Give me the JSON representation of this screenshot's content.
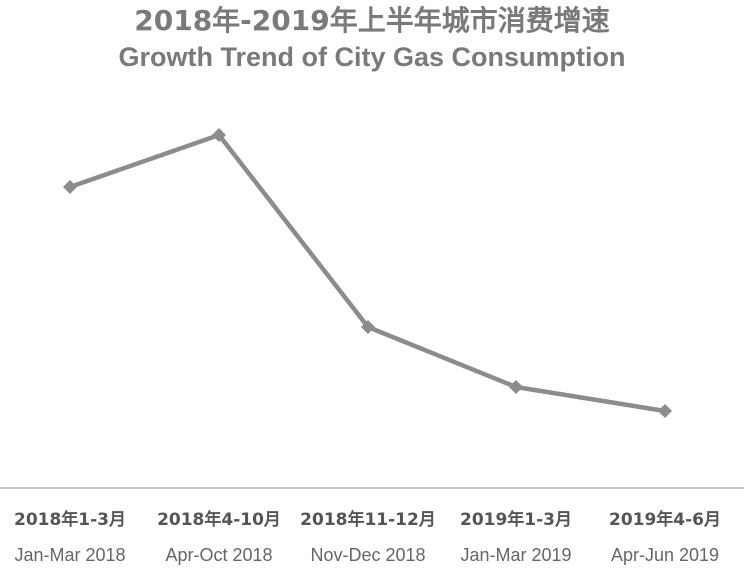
{
  "chart_data": {
    "type": "line",
    "title": "2018年-2019年上半年城市消费增速",
    "subtitle": "Growth Trend of City Gas Consumption",
    "categories": [
      {
        "cn": "2018年1-3月",
        "en": "Jan-Mar 2018"
      },
      {
        "cn": "2018年4-10月",
        "en": "Apr-Oct 2018"
      },
      {
        "cn": "2018年11-12月",
        "en": "Nov-Dec 2018"
      },
      {
        "cn": "2019年1-3月",
        "en": "Jan-Mar 2019"
      },
      {
        "cn": "2019年4-6月",
        "en": "Apr-Jun 2019"
      }
    ],
    "series": [
      {
        "values": [
          0.72,
          0.85,
          0.37,
          0.22,
          0.16
        ]
      }
    ],
    "ylim": [
      0,
      1
    ],
    "y_axis_shown": false,
    "grid": false,
    "legend": "none",
    "line_color": "#8c8c8c",
    "marker": "diamond",
    "axis_color": "#c9c9c9"
  }
}
